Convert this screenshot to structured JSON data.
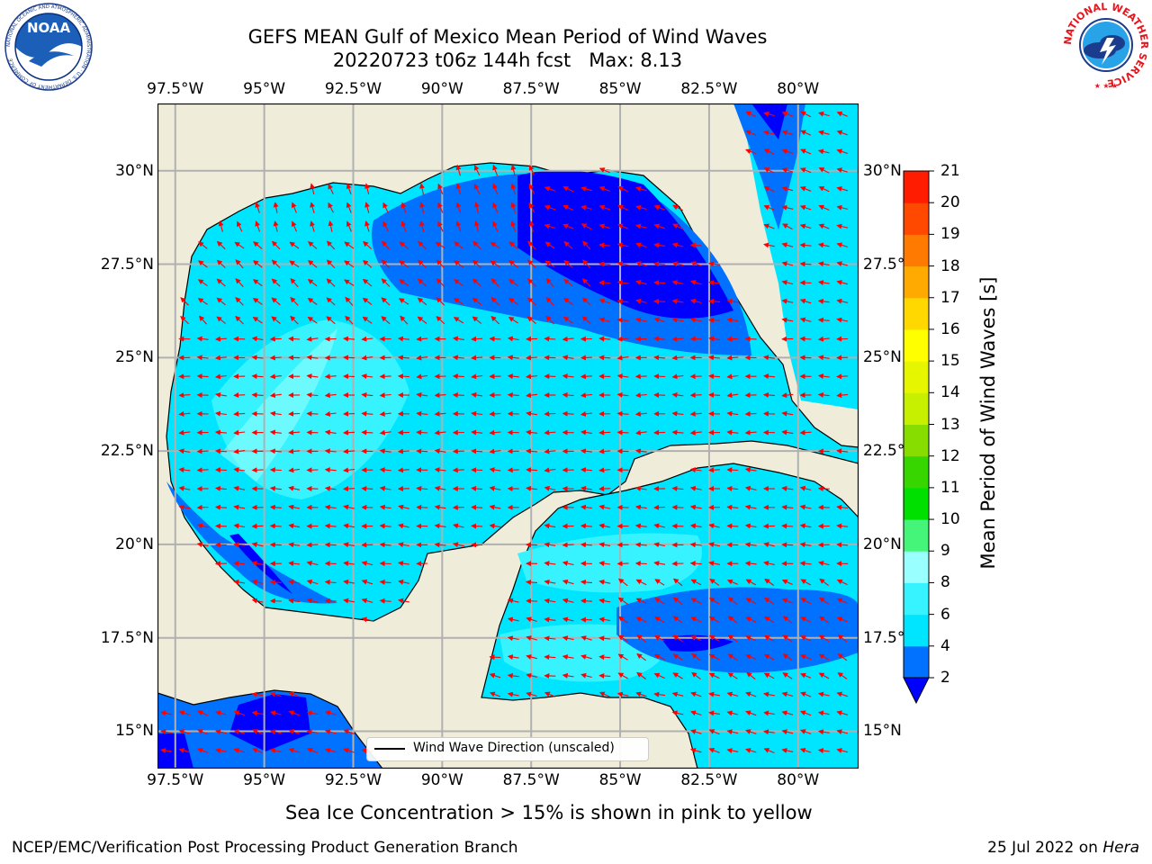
{
  "header": {
    "title_line1": "GEFS MEAN Gulf of Mexico Mean Period of Wind Waves",
    "title_line2": "20220723 t06z 144h fcst   Max: 8.13"
  },
  "logos": {
    "noaa": {
      "text": "NOAA",
      "ring_text": "NATIONAL OCEANIC AND ATMOSPHERIC ADMINISTRATION · U.S. DEPARTMENT OF COMMERCE"
    },
    "nws": {
      "ring_text": "NATIONAL WEATHER SERVICE"
    }
  },
  "map": {
    "lon_range": [
      -98,
      -78.3
    ],
    "lat_range": [
      14.0,
      31.8
    ],
    "lon_ticks": [
      "97.5°W",
      "95°W",
      "92.5°W",
      "90°W",
      "87.5°W",
      "85°W",
      "82.5°W",
      "80°W"
    ],
    "lat_ticks": [
      "30°N",
      "27.5°N",
      "25°N",
      "22.5°N",
      "20°N",
      "17.5°N",
      "15°N"
    ],
    "lat_ticks_right": [
      "30°N",
      "27.5°N",
      "25°N",
      "22.5°N",
      "20°N",
      "17.5°N",
      "15°N"
    ],
    "land_color": "#efedda",
    "grid_color": "#b0b0b0",
    "arrow_color": "#ff0000",
    "legend": {
      "label": "Wind Wave Direction (unscaled)"
    }
  },
  "colorbar": {
    "label": "Mean Period of Wind Waves [s]",
    "ticks": [
      "2",
      "4",
      "6",
      "8",
      "9",
      "10",
      "11",
      "12",
      "13",
      "14",
      "15",
      "16",
      "17",
      "18",
      "19",
      "20",
      "21"
    ],
    "colors": [
      "#0072ff",
      "#00e5ff",
      "#37f3ff",
      "#99ffff",
      "#44f57a",
      "#00e000",
      "#37d600",
      "#88dd00",
      "#c6f000",
      "#e6f500",
      "#ffff00",
      "#ffd800",
      "#ffaa00",
      "#ff7a00",
      "#ff4800",
      "#ff1c00"
    ],
    "under_color": "#0000ff"
  },
  "notes": {
    "sea_ice": "Sea Ice Concentration > 15% is shown in pink to yellow"
  },
  "footer": {
    "left": "NCEP/EMC/Verification Post Processing Product Generation Branch",
    "date": "25 Jul 2022 on ",
    "machine": "Hera"
  }
}
